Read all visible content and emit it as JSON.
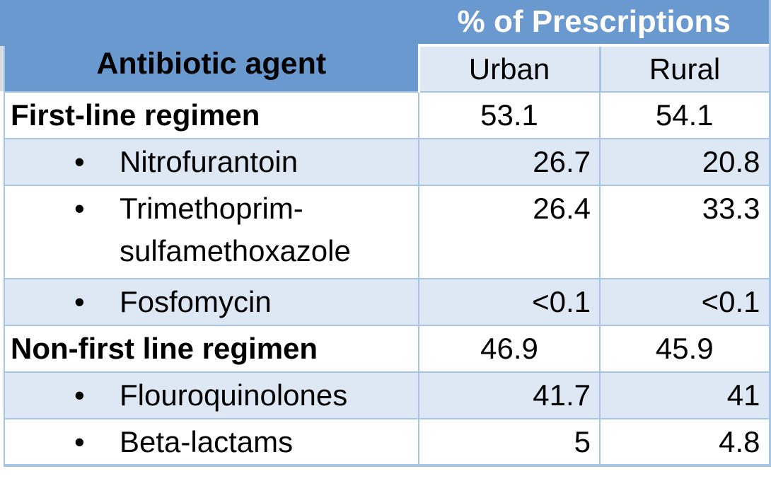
{
  "chart_data": {
    "type": "table",
    "title": "% of Prescriptions",
    "row_header": "Antibiotic agent",
    "columns": [
      "Urban",
      "Rural"
    ],
    "bullet_char": "•",
    "rows": [
      {
        "label": "First-line regimen",
        "style": "group",
        "urban": "53.1",
        "rural": "54.1"
      },
      {
        "label": "Nitrofurantoin",
        "style": "bullet",
        "urban": "26.7",
        "rural": "20.8"
      },
      {
        "label": "Trimethoprim-sulfamethoxazole",
        "style": "bullet",
        "urban": "26.4",
        "rural": "33.3"
      },
      {
        "label": "Fosfomycin",
        "style": "bullet",
        "urban": "<0.1",
        "rural": "<0.1"
      },
      {
        "label": "Non-first line regimen",
        "style": "group",
        "urban": "46.9",
        "rural": "45.9"
      },
      {
        "label": "Flouroquinolones",
        "style": "bullet",
        "urban": "41.7",
        "rural": "41"
      },
      {
        "label": "Beta-lactams",
        "style": "bullet",
        "urban": "5",
        "rural": "4.8"
      }
    ],
    "layout": {
      "banded_row_indices": [
        1,
        3,
        5
      ],
      "group_value_alignment": "center",
      "bullet_value_alignment": "right"
    }
  },
  "colors": {
    "header_blue": "#6A99CF",
    "band_light_blue": "#DEE8F4",
    "border_blue": "#A7C5E5",
    "header_text_white": "#FFFFFF",
    "text_black": "#000000",
    "page_background": "#FFFFFF"
  }
}
